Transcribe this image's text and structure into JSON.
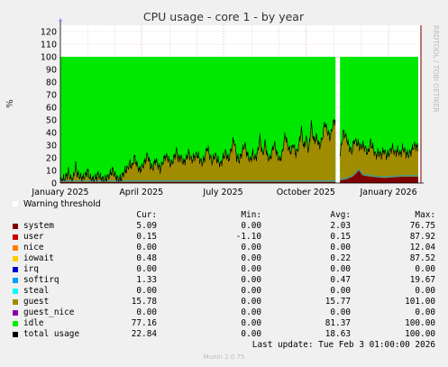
{
  "chart_data": {
    "type": "area",
    "title": "CPU usage - core 1 - by year",
    "ylabel": "%",
    "ylim": [
      0,
      125
    ],
    "yticks": [
      0,
      10,
      20,
      30,
      40,
      50,
      60,
      70,
      80,
      90,
      100,
      110,
      120
    ],
    "x_tick_labels": [
      "January 2025",
      "April 2025",
      "July 2025",
      "October 2025",
      "January 2026"
    ],
    "stacked": true,
    "grid": true,
    "gap": [
      "2025-10-21",
      "2025-10-27"
    ],
    "warning_label": "Warning threshold",
    "columns": [
      "Cur:",
      "Min:",
      "Avg:",
      "Max:"
    ],
    "series": [
      {
        "name": "system",
        "color": "#7f0000",
        "cur": "5.09",
        "min": "0.00",
        "avg": "2.03",
        "max": "76.75"
      },
      {
        "name": "user",
        "color": "#cc0000",
        "cur": "0.15",
        "min": "-1.10",
        "avg": "0.15",
        "max": "87.92"
      },
      {
        "name": "nice",
        "color": "#ff7f00",
        "cur": "0.00",
        "min": "0.00",
        "avg": "0.00",
        "max": "12.04"
      },
      {
        "name": "iowait",
        "color": "#ffcc00",
        "cur": "0.48",
        "min": "0.00",
        "avg": "0.22",
        "max": "87.52"
      },
      {
        "name": "irq",
        "color": "#0000cc",
        "cur": "0.00",
        "min": "0.00",
        "avg": "0.00",
        "max": "0.00"
      },
      {
        "name": "softirq",
        "color": "#00a0ff",
        "cur": "1.33",
        "min": "0.00",
        "avg": "0.47",
        "max": "19.67"
      },
      {
        "name": "steal",
        "color": "#00ffff",
        "cur": "0.00",
        "min": "0.00",
        "avg": "0.00",
        "max": "0.00"
      },
      {
        "name": "guest",
        "color": "#a08c00",
        "cur": "15.78",
        "min": "0.00",
        "avg": "15.77",
        "max": "101.00"
      },
      {
        "name": "guest_nice",
        "color": "#8800aa",
        "cur": "0.00",
        "min": "0.00",
        "avg": "0.00",
        "max": "0.00"
      },
      {
        "name": "idle",
        "color": "#00ee00",
        "cur": "77.16",
        "min": "0.00",
        "avg": "81.37",
        "max": "100.00"
      },
      {
        "name": "total usage",
        "color": "#000000",
        "cur": "22.84",
        "min": "0.00",
        "avg": "18.63",
        "max": "100.00"
      }
    ],
    "guest_profile": [
      [
        0,
        1
      ],
      [
        3,
        2
      ],
      [
        6,
        4
      ],
      [
        9,
        8
      ],
      [
        11,
        3
      ],
      [
        14,
        2
      ],
      [
        17,
        13
      ],
      [
        19,
        6
      ],
      [
        22,
        4
      ],
      [
        25,
        3
      ],
      [
        28,
        5
      ],
      [
        30,
        9
      ],
      [
        33,
        3
      ],
      [
        36,
        2
      ],
      [
        39,
        3
      ],
      [
        42,
        6
      ],
      [
        44,
        4
      ],
      [
        47,
        2
      ],
      [
        50,
        2
      ],
      [
        52,
        3
      ],
      [
        55,
        6
      ],
      [
        58,
        10
      ],
      [
        60,
        6
      ],
      [
        63,
        3
      ],
      [
        66,
        2
      ],
      [
        69,
        5
      ],
      [
        72,
        9
      ],
      [
        75,
        11
      ],
      [
        77,
        15
      ],
      [
        80,
        12
      ],
      [
        82,
        20
      ],
      [
        85,
        14
      ],
      [
        88,
        9
      ],
      [
        91,
        12
      ],
      [
        94,
        16
      ],
      [
        97,
        22
      ],
      [
        100,
        13
      ],
      [
        103,
        11
      ],
      [
        106,
        18
      ],
      [
        108,
        14
      ],
      [
        111,
        10
      ],
      [
        114,
        16
      ],
      [
        117,
        21
      ],
      [
        120,
        18
      ],
      [
        123,
        14
      ],
      [
        126,
        18
      ],
      [
        129,
        25
      ],
      [
        131,
        18
      ],
      [
        134,
        20
      ],
      [
        137,
        15
      ],
      [
        140,
        19
      ],
      [
        143,
        23
      ],
      [
        146,
        17
      ],
      [
        149,
        20
      ],
      [
        152,
        22
      ],
      [
        155,
        18
      ],
      [
        158,
        15
      ],
      [
        161,
        20
      ],
      [
        163,
        28
      ],
      [
        166,
        21
      ],
      [
        169,
        16
      ],
      [
        172,
        22
      ],
      [
        175,
        17
      ],
      [
        178,
        14
      ],
      [
        181,
        19
      ],
      [
        184,
        24
      ],
      [
        187,
        17
      ],
      [
        190,
        26
      ],
      [
        193,
        34
      ],
      [
        196,
        20
      ],
      [
        199,
        17
      ],
      [
        202,
        24
      ],
      [
        205,
        30
      ],
      [
        208,
        21
      ],
      [
        211,
        17
      ],
      [
        214,
        23
      ],
      [
        216,
        18
      ],
      [
        219,
        22
      ],
      [
        222,
        35
      ],
      [
        225,
        21
      ],
      [
        228,
        32
      ],
      [
        230,
        20
      ],
      [
        233,
        18
      ],
      [
        236,
        26
      ],
      [
        238,
        30
      ],
      [
        241,
        22
      ],
      [
        244,
        17
      ],
      [
        247,
        24
      ],
      [
        250,
        38
      ],
      [
        253,
        28
      ],
      [
        256,
        24
      ],
      [
        259,
        30
      ],
      [
        262,
        22
      ],
      [
        265,
        28
      ],
      [
        268,
        42
      ],
      [
        271,
        26
      ],
      [
        273,
        36
      ],
      [
        276,
        24
      ],
      [
        279,
        46
      ],
      [
        282,
        32
      ],
      [
        285,
        36
      ],
      [
        288,
        28
      ],
      [
        291,
        34
      ],
      [
        294,
        47
      ],
      [
        297,
        40
      ],
      [
        300,
        35
      ],
      [
        303,
        45
      ],
      [
        306,
        50
      ]
    ],
    "guest_profile2": [
      [
        311,
        20
      ],
      [
        313,
        30
      ],
      [
        315,
        38
      ],
      [
        318,
        33
      ],
      [
        321,
        25
      ],
      [
        324,
        20
      ],
      [
        327,
        28
      ],
      [
        330,
        23
      ],
      [
        333,
        19
      ],
      [
        336,
        24
      ],
      [
        339,
        22
      ],
      [
        342,
        18
      ],
      [
        345,
        28
      ],
      [
        348,
        22
      ],
      [
        351,
        17
      ],
      [
        354,
        20
      ],
      [
        357,
        18
      ],
      [
        360,
        22
      ],
      [
        363,
        17
      ],
      [
        366,
        20
      ],
      [
        369,
        24
      ],
      [
        372,
        19
      ],
      [
        375,
        21
      ],
      [
        378,
        18
      ],
      [
        381,
        23
      ],
      [
        384,
        19
      ],
      [
        387,
        17
      ],
      [
        390,
        20
      ],
      [
        393,
        24
      ],
      [
        395,
        25
      ],
      [
        398,
        22
      ]
    ],
    "system_profile2": [
      [
        311,
        2
      ],
      [
        318,
        3
      ],
      [
        325,
        5
      ],
      [
        328,
        7
      ],
      [
        332,
        10
      ],
      [
        336,
        6
      ],
      [
        345,
        5
      ],
      [
        360,
        4
      ],
      [
        380,
        5
      ],
      [
        398,
        5
      ]
    ]
  },
  "footer": {
    "last_update": "Last update: Tue Feb  3 01:00:00 2026",
    "generator": "Munin 2.0.75",
    "side_label": "RRDTOOL / TOBI OETIKER"
  }
}
